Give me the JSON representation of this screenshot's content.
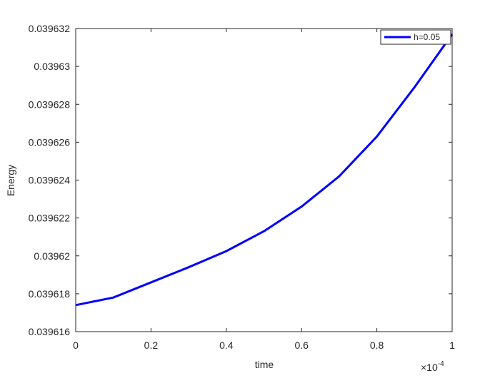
{
  "chart_data": {
    "type": "line",
    "xlabel": "time",
    "ylabel": "Energy",
    "x_multiplier": {
      "base": "×10",
      "exponent": "-4"
    },
    "x": [
      0,
      0.1,
      0.2,
      0.3,
      0.4,
      0.5,
      0.6,
      0.7,
      0.8,
      0.9,
      1
    ],
    "series": [
      {
        "name": "h=0.05",
        "color": "#0000ff",
        "values": [
          0.0396174,
          0.0396178,
          0.0396186,
          0.0396194,
          0.03962025,
          0.0396213,
          0.0396226,
          0.0396242,
          0.0396263,
          0.0396289,
          0.0396317
        ]
      }
    ],
    "xlim": [
      0,
      1
    ],
    "xticks": [
      0,
      0.2,
      0.4,
      0.6,
      0.8,
      1
    ],
    "ylim": [
      0.039616,
      0.039632
    ],
    "yticks": [
      0.039616,
      0.039618,
      0.03962,
      0.039622,
      0.039624,
      0.039626,
      0.039628,
      0.03963,
      0.039632
    ],
    "legend": "top-right",
    "grid": false
  }
}
